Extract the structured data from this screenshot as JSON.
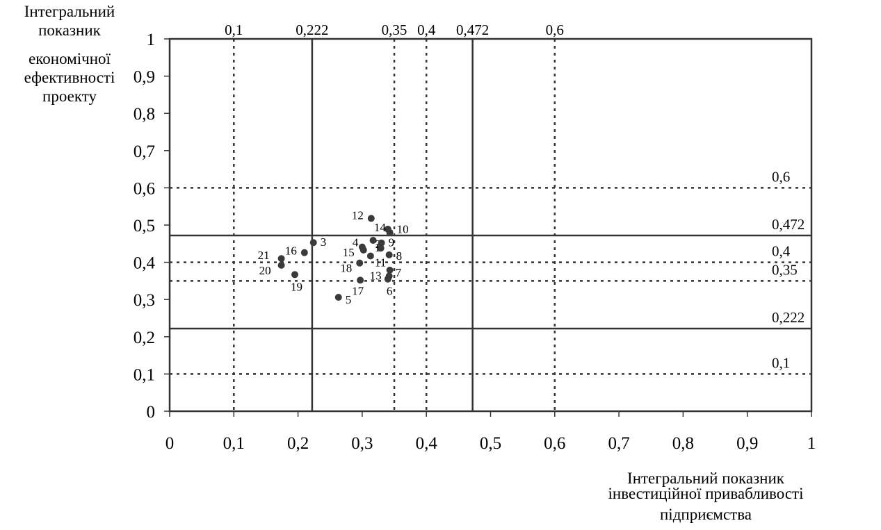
{
  "chart_data": {
    "type": "scatter",
    "ylabel_lines": [
      "Інтегральний",
      "показник",
      "економічної",
      "ефективності",
      "проекту"
    ],
    "xlabel_lines": [
      "Інтегральний показник",
      "інвестиційної привабливості",
      "підприємства"
    ],
    "xlim": [
      0,
      1
    ],
    "ylim": [
      0,
      1
    ],
    "x_ticks": [
      "0",
      "0,1",
      "0,2",
      "0,3",
      "0,4",
      "0,5",
      "0,6",
      "0,7",
      "0,8",
      "0,9",
      "1"
    ],
    "y_ticks": [
      "0",
      "0,1",
      "0,2",
      "0,3",
      "0,4",
      "0,5",
      "0,6",
      "0,7",
      "0,8",
      "0,9",
      "1"
    ],
    "vertical_lines": [
      {
        "value": 0.1,
        "label": "0,1",
        "style": "dotted"
      },
      {
        "value": 0.222,
        "label": "0,222",
        "style": "solid"
      },
      {
        "value": 0.35,
        "label": "0,35",
        "style": "dotted"
      },
      {
        "value": 0.4,
        "label": "0,4",
        "style": "dotted"
      },
      {
        "value": 0.472,
        "label": "0,472",
        "style": "solid"
      },
      {
        "value": 0.6,
        "label": "0,6",
        "style": "dotted"
      }
    ],
    "horizontal_lines": [
      {
        "value": 0.6,
        "label": "0,6",
        "style": "dotted"
      },
      {
        "value": 0.472,
        "label": "0,472",
        "style": "solid"
      },
      {
        "value": 0.4,
        "label": "0,4",
        "style": "dotted"
      },
      {
        "value": 0.35,
        "label": "0,35",
        "style": "dotted"
      },
      {
        "value": 0.222,
        "label": "0,222",
        "style": "solid"
      },
      {
        "value": 0.1,
        "label": "0,1",
        "style": "dotted"
      }
    ],
    "points": [
      {
        "label": "12",
        "x": 0.314,
        "y": 0.518
      },
      {
        "label": "14",
        "x": 0.34,
        "y": 0.489
      },
      {
        "label": "10",
        "x": 0.343,
        "y": 0.48
      },
      {
        "label": "3",
        "x": 0.224,
        "y": 0.453
      },
      {
        "label": "16",
        "x": 0.21,
        "y": 0.426
      },
      {
        "label": "21",
        "x": 0.174,
        "y": 0.41
      },
      {
        "label": "20",
        "x": 0.174,
        "y": 0.392
      },
      {
        "label": "19",
        "x": 0.195,
        "y": 0.367
      },
      {
        "label": "4",
        "x": 0.3,
        "y": 0.441
      },
      {
        "label": "15",
        "x": 0.302,
        "y": 0.433
      },
      {
        "label": "2",
        "x": 0.317,
        "y": 0.459
      },
      {
        "label": "9",
        "x": 0.33,
        "y": 0.452
      },
      {
        "label": "1",
        "x": 0.329,
        "y": 0.438
      },
      {
        "label": "8",
        "x": 0.342,
        "y": 0.42
      },
      {
        "label": "11",
        "x": 0.313,
        "y": 0.417
      },
      {
        "label": "18",
        "x": 0.296,
        "y": 0.398
      },
      {
        "label": "7",
        "x": 0.343,
        "y": 0.379
      },
      {
        "label": "13",
        "x": 0.342,
        "y": 0.363
      },
      {
        "label": "17",
        "x": 0.297,
        "y": 0.352
      },
      {
        "label": "6",
        "x": 0.34,
        "y": 0.355
      },
      {
        "label": "5",
        "x": 0.263,
        "y": 0.306
      }
    ],
    "point_color": "#3a3a3a",
    "line_color": "#333333",
    "grid": false
  }
}
